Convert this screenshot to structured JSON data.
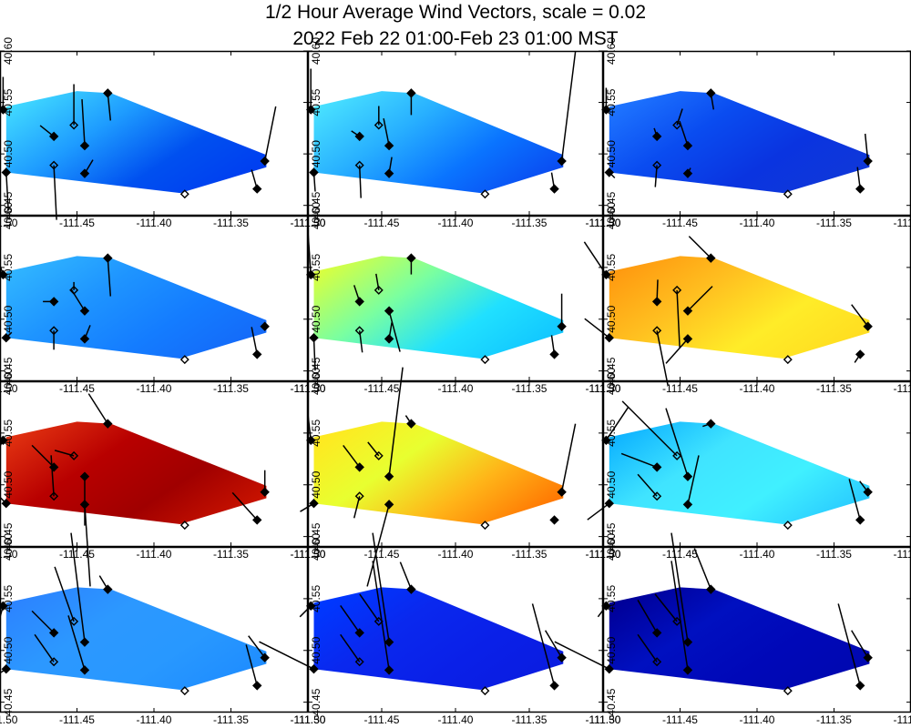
{
  "header": {
    "title_line1": "1/2 Hour Average Wind Vectors, scale =  0.02",
    "title_line2": "2022 Feb 22 01:00-Feb 23 01:00 MST"
  },
  "colors": {
    "background": "#ffffff",
    "frame": "#000000",
    "vector": "#000000",
    "colormap": "jet"
  },
  "chart_data": {
    "type": "heatmap",
    "layout": "4x3 small multiples",
    "xlim": [
      -111.5,
      -111.3
    ],
    "ylim": [
      40.44,
      40.6
    ],
    "x_ticks": [
      -111.5,
      -111.45,
      -111.4,
      -111.35,
      -111.3
    ],
    "x_tick_labels": [
      "-111.50",
      "-111.45",
      "-111.40",
      "-111.35",
      "-111.30"
    ],
    "y_ticks": [
      40.45,
      40.5,
      40.55,
      40.6
    ],
    "y_tick_labels": [
      "40.45",
      "40.50",
      "40.55",
      "40.60"
    ],
    "domain_polygon": [
      [
        -111.496,
        40.546
      ],
      [
        -111.45,
        40.561
      ],
      [
        -111.428,
        40.559
      ],
      [
        -111.327,
        40.499
      ],
      [
        -111.327,
        40.487
      ],
      [
        -111.383,
        40.462
      ],
      [
        -111.496,
        40.482
      ]
    ],
    "stations_filled": [
      [
        -111.498,
        40.543
      ],
      [
        -111.496,
        40.482
      ],
      [
        -111.465,
        40.517
      ],
      [
        -111.445,
        40.508
      ],
      [
        -111.445,
        40.481
      ],
      [
        -111.43,
        40.559
      ],
      [
        -111.333,
        40.466
      ],
      [
        -111.328,
        40.493
      ]
    ],
    "stations_open": [
      [
        -111.465,
        40.489
      ],
      [
        -111.452,
        40.528
      ],
      [
        -111.38,
        40.461
      ]
    ],
    "panels": [
      {
        "colors": [
          "#40d8ff",
          "#1e9cff",
          "#0050f0",
          "#003cf0"
        ],
        "vectors": [
          [
            0,
            12
          ],
          [
            0.8,
            -14
          ],
          [
            -5,
            4
          ],
          [
            -1,
            17
          ],
          [
            3,
            5
          ],
          [
            1,
            -10
          ],
          [
            -2,
            7
          ],
          [
            4,
            20
          ],
          [
            1,
            -20
          ],
          [
            0,
            15
          ]
        ]
      },
      {
        "colors": [
          "#48e0ff",
          "#28b0ff",
          "#0a74ff",
          "#0a48f0"
        ],
        "vectors": [
          [
            0,
            15
          ],
          [
            0.5,
            -7
          ],
          [
            -3,
            2
          ],
          [
            -2,
            10
          ],
          [
            1,
            6
          ],
          [
            0,
            -8
          ],
          [
            -1,
            6
          ],
          [
            5,
            40
          ],
          [
            0.5,
            -12
          ],
          [
            0,
            7
          ]
        ]
      },
      {
        "colors": [
          "#1e74ff",
          "#0a4cf0",
          "#0a34e0",
          "#1038d8"
        ],
        "vectors": [
          [
            0,
            8
          ],
          [
            2,
            -2
          ],
          [
            -1,
            3
          ],
          [
            -3,
            9
          ],
          [
            1,
            2
          ],
          [
            1,
            -6
          ],
          [
            -1,
            8
          ],
          [
            -1,
            10
          ],
          [
            -0.6,
            -8
          ],
          [
            2,
            6
          ]
        ]
      },
      {
        "colors": [
          "#30b4ff",
          "#1e94ff",
          "#147cff",
          "#1468f8"
        ],
        "vectors": [
          [
            -2,
            6
          ],
          [
            2,
            2
          ],
          [
            -4,
            0
          ],
          [
            -5,
            8
          ],
          [
            2,
            5
          ],
          [
            1,
            -14
          ],
          [
            -2,
            10
          ],
          [
            1,
            0
          ],
          [
            0,
            -7
          ],
          [
            0,
            3
          ]
        ]
      },
      {
        "colors": [
          "#d8ff40",
          "#7affa0",
          "#20e0ff",
          "#10c4ff"
        ],
        "vectors": [
          [
            -1,
            15
          ],
          [
            0.5,
            -12
          ],
          [
            -2,
            6
          ],
          [
            4,
            -15
          ],
          [
            1,
            6
          ],
          [
            0,
            -6
          ],
          [
            -1,
            7
          ],
          [
            0,
            12
          ],
          [
            1,
            -8
          ],
          [
            -1,
            6
          ]
        ]
      },
      {
        "colors": [
          "#ff9a10",
          "#ffc020",
          "#ffec28",
          "#ffdc20"
        ],
        "vectors": [
          [
            -8,
            12
          ],
          [
            -9,
            7
          ],
          [
            0.3,
            8
          ],
          [
            9,
            9
          ],
          [
            -8,
            -9
          ],
          [
            -8,
            8
          ],
          [
            -2,
            -3
          ],
          [
            -6,
            8
          ],
          [
            4,
            -20
          ],
          [
            1,
            -21
          ]
        ]
      },
      {
        "colors": [
          "#e03010",
          "#b80000",
          "#a00000",
          "#cc1400"
        ],
        "vectors": [
          [
            -7,
            -13
          ],
          [
            -8,
            8
          ],
          [
            -8,
            8
          ],
          [
            0,
            -18
          ],
          [
            2,
            -30
          ],
          [
            -7,
            11
          ],
          [
            -9,
            10
          ],
          [
            0,
            8
          ],
          [
            -1,
            15
          ],
          [
            -7,
            2
          ]
        ]
      },
      {
        "colors": [
          "#ffe820",
          "#e8ff30",
          "#ffb418",
          "#ff7000"
        ],
        "vectors": [
          [
            -1,
            9
          ],
          [
            -5,
            -3
          ],
          [
            -6,
            8
          ],
          [
            5,
            40
          ],
          [
            -8,
            -30
          ],
          [
            -2,
            3
          ],
          [
            0,
            0
          ],
          [
            5,
            25
          ],
          [
            -2,
            -8
          ],
          [
            -4,
            5
          ]
        ]
      },
      {
        "colors": [
          "#10b4ff",
          "#40e4ff",
          "#40f0ff",
          "#28c8ff"
        ],
        "vectors": [
          [
            8,
            12
          ],
          [
            -8,
            -6
          ],
          [
            -13,
            5
          ],
          [
            -8,
            25
          ],
          [
            4,
            18
          ],
          [
            -3,
            -1
          ],
          [
            -4,
            15
          ],
          [
            -3,
            4
          ],
          [
            -7,
            8
          ],
          [
            -20,
            20
          ]
        ]
      },
      {
        "colors": [
          "#2c84ff",
          "#2c98ff",
          "#2898ff",
          "#1e8cff"
        ],
        "vectors": [
          [
            -3,
            -11
          ],
          [
            -22,
            -14
          ],
          [
            -8,
            8
          ],
          [
            -5,
            40
          ],
          [
            -6,
            20
          ],
          [
            -3,
            5
          ],
          [
            -4,
            15
          ],
          [
            -6,
            8
          ],
          [
            -7,
            10
          ],
          [
            -7,
            20
          ]
        ]
      },
      {
        "colors": [
          "#0038ff",
          "#0a28ee",
          "#0a20e8",
          "#0a1ce0"
        ],
        "vectors": [
          [
            -4,
            -4
          ],
          [
            -20,
            10
          ],
          [
            -7,
            10
          ],
          [
            -6,
            40
          ],
          [
            -6,
            40
          ],
          [
            -4,
            10
          ],
          [
            -8,
            30
          ],
          [
            -6,
            10
          ],
          [
            -7,
            10
          ],
          [
            -7,
            10
          ]
        ]
      },
      {
        "colors": [
          "#000098",
          "#0010c0",
          "#0008b8",
          "#0008b0"
        ],
        "vectors": [
          [
            -3,
            -4
          ],
          [
            -20,
            10
          ],
          [
            -7,
            12
          ],
          [
            -6,
            40
          ],
          [
            -6,
            40
          ],
          [
            -6,
            15
          ],
          [
            -8,
            30
          ],
          [
            -6,
            10
          ],
          [
            -7,
            10
          ],
          [
            -8,
            10
          ]
        ]
      }
    ]
  }
}
